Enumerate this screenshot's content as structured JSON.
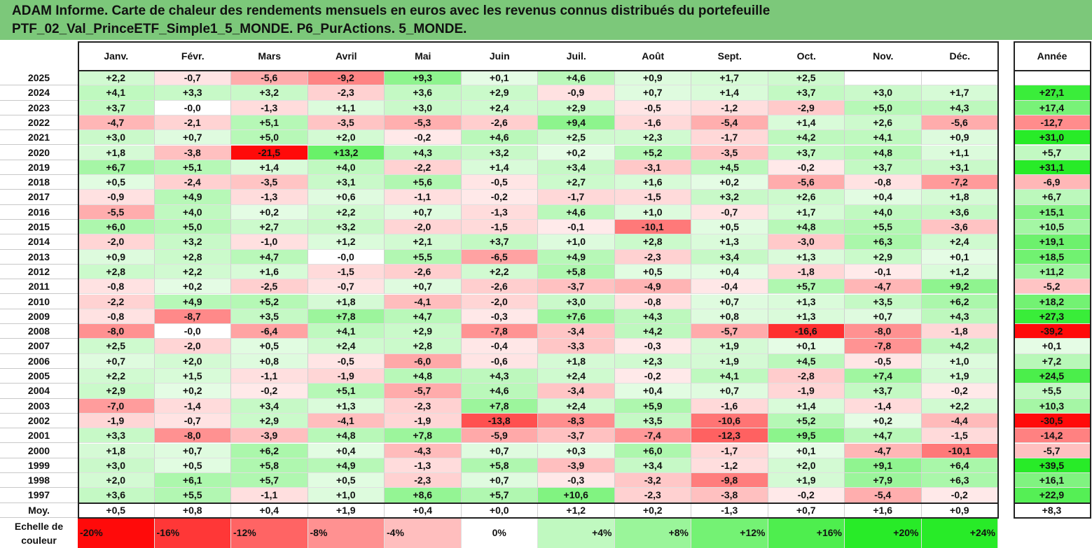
{
  "title": {
    "line1": "ADAM Informe. Carte de chaleur des rendements mensuels en euros avec les revenus connus distribués du portefeuille",
    "line2": "PTF_02_Val_PrinceETF_Simple1_5_MONDE. P6_PurActions. 5_MONDE."
  },
  "colors": {
    "title_bg": "#7cc87a",
    "positive_max": "#2ee82e",
    "negative_max": "#ff0000",
    "neutral": "#ffffff"
  },
  "chart_data": {
    "type": "heatmap",
    "columns": [
      "Janv.",
      "Févr.",
      "Mars",
      "Avril",
      "Mai",
      "Juin",
      "Juil.",
      "Août",
      "Sept.",
      "Oct.",
      "Nov.",
      "Déc."
    ],
    "year_column": "Année",
    "rows": [
      {
        "label": "2025",
        "months": [
          "+2,2",
          "-0,7",
          "-5,6",
          "-9,2",
          "+9,3",
          "+0,1",
          "+4,6",
          "+0,9",
          "+1,7",
          "+2,5",
          "",
          ""
        ],
        "year": ""
      },
      {
        "label": "2024",
        "months": [
          "+4,1",
          "+3,3",
          "+3,2",
          "-2,3",
          "+3,6",
          "+2,9",
          "-0,9",
          "+0,7",
          "+1,4",
          "+3,7",
          "+3,0",
          "+1,7"
        ],
        "year": "+27,1"
      },
      {
        "label": "2023",
        "months": [
          "+3,7",
          "-0,0",
          "-1,3",
          "+1,1",
          "+3,0",
          "+2,4",
          "+2,9",
          "-0,5",
          "-1,2",
          "-2,9",
          "+5,0",
          "+4,3"
        ],
        "year": "+17,4"
      },
      {
        "label": "2022",
        "months": [
          "-4,7",
          "-2,1",
          "+5,1",
          "-3,5",
          "-5,3",
          "-2,6",
          "+9,4",
          "-1,6",
          "-5,4",
          "+1,4",
          "+2,6",
          "-5,6"
        ],
        "year": "-12,7"
      },
      {
        "label": "2021",
        "months": [
          "+3,0",
          "+0,7",
          "+5,0",
          "+2,0",
          "-0,2",
          "+4,6",
          "+2,5",
          "+2,3",
          "-1,7",
          "+4,2",
          "+4,1",
          "+0,9"
        ],
        "year": "+31,0"
      },
      {
        "label": "2020",
        "months": [
          "+1,8",
          "-3,8",
          "-21,5",
          "+13,2",
          "+4,3",
          "+3,2",
          "+0,2",
          "+5,2",
          "-3,5",
          "+3,7",
          "+4,8",
          "+1,1"
        ],
        "year": "+5,7"
      },
      {
        "label": "2019",
        "months": [
          "+6,7",
          "+5,1",
          "+1,4",
          "+4,0",
          "-2,2",
          "+1,4",
          "+3,4",
          "-3,1",
          "+4,5",
          "-0,2",
          "+3,7",
          "+3,1"
        ],
        "year": "+31,1"
      },
      {
        "label": "2018",
        "months": [
          "+0,5",
          "-2,4",
          "-3,5",
          "+3,1",
          "+5,6",
          "-0,5",
          "+2,7",
          "+1,6",
          "+0,2",
          "-5,6",
          "-0,8",
          "-7,2"
        ],
        "year": "-6,9"
      },
      {
        "label": "2017",
        "months": [
          "-0,9",
          "+4,9",
          "-1,3",
          "+0,6",
          "-1,1",
          "-0,2",
          "-1,7",
          "-1,5",
          "+3,2",
          "+2,6",
          "+0,4",
          "+1,8"
        ],
        "year": "+6,7"
      },
      {
        "label": "2016",
        "months": [
          "-5,5",
          "+4,0",
          "+0,2",
          "+2,2",
          "+0,7",
          "-1,3",
          "+4,6",
          "+1,0",
          "-0,7",
          "+1,7",
          "+4,0",
          "+3,6"
        ],
        "year": "+15,1"
      },
      {
        "label": "2015",
        "months": [
          "+6,0",
          "+5,0",
          "+2,7",
          "+3,2",
          "-2,0",
          "-1,5",
          "-0,1",
          "-10,1",
          "+0,5",
          "+4,8",
          "+5,5",
          "-3,6"
        ],
        "year": "+10,5"
      },
      {
        "label": "2014",
        "months": [
          "-2,0",
          "+3,2",
          "-1,0",
          "+1,2",
          "+2,1",
          "+3,7",
          "+1,0",
          "+2,8",
          "+1,3",
          "-3,0",
          "+6,3",
          "+2,4"
        ],
        "year": "+19,1"
      },
      {
        "label": "2013",
        "months": [
          "+0,9",
          "+2,8",
          "+4,7",
          "-0,0",
          "+5,5",
          "-6,5",
          "+4,9",
          "-2,3",
          "+3,4",
          "+1,3",
          "+2,9",
          "+0,1"
        ],
        "year": "+18,5"
      },
      {
        "label": "2012",
        "months": [
          "+2,8",
          "+2,2",
          "+1,6",
          "-1,5",
          "-2,6",
          "+2,2",
          "+5,8",
          "+0,5",
          "+0,4",
          "-1,8",
          "-0,1",
          "+1,2"
        ],
        "year": "+11,2"
      },
      {
        "label": "2011",
        "months": [
          "-0,8",
          "+0,2",
          "-2,5",
          "-0,7",
          "+0,7",
          "-2,6",
          "-3,7",
          "-4,9",
          "-0,4",
          "+5,7",
          "-4,7",
          "+9,2"
        ],
        "year": "-5,2"
      },
      {
        "label": "2010",
        "months": [
          "-2,2",
          "+4,9",
          "+5,2",
          "+1,8",
          "-4,1",
          "-2,0",
          "+3,0",
          "-0,8",
          "+0,7",
          "+1,3",
          "+3,5",
          "+6,2"
        ],
        "year": "+18,2"
      },
      {
        "label": "2009",
        "months": [
          "-0,8",
          "-8,7",
          "+3,5",
          "+7,8",
          "+4,7",
          "-0,3",
          "+7,6",
          "+4,3",
          "+0,8",
          "+1,3",
          "+0,7",
          "+4,3"
        ],
        "year": "+27,3"
      },
      {
        "label": "2008",
        "months": [
          "-8,0",
          "-0,0",
          "-6,4",
          "+4,1",
          "+2,9",
          "-7,8",
          "-3,4",
          "+4,2",
          "-5,7",
          "-16,6",
          "-8,0",
          "-1,8"
        ],
        "year": "-39,2"
      },
      {
        "label": "2007",
        "months": [
          "+2,5",
          "-2,0",
          "+0,5",
          "+2,4",
          "+2,8",
          "-0,4",
          "-3,3",
          "-0,3",
          "+1,9",
          "+0,1",
          "-7,8",
          "+4,2"
        ],
        "year": "+0,1"
      },
      {
        "label": "2006",
        "months": [
          "+0,7",
          "+2,0",
          "+0,8",
          "-0,5",
          "-6,0",
          "-0,6",
          "+1,8",
          "+2,3",
          "+1,9",
          "+4,5",
          "-0,5",
          "+1,0"
        ],
        "year": "+7,2"
      },
      {
        "label": "2005",
        "months": [
          "+2,2",
          "+1,5",
          "-1,1",
          "-1,9",
          "+4,8",
          "+4,3",
          "+2,4",
          "-0,2",
          "+4,1",
          "-2,8",
          "+7,4",
          "+1,9"
        ],
        "year": "+24,5"
      },
      {
        "label": "2004",
        "months": [
          "+2,9",
          "+0,2",
          "-0,2",
          "+5,1",
          "-5,7",
          "+4,6",
          "-3,4",
          "+0,4",
          "+0,7",
          "-1,9",
          "+3,7",
          "-0,2"
        ],
        "year": "+5,5"
      },
      {
        "label": "2003",
        "months": [
          "-7,0",
          "-1,4",
          "+3,4",
          "+1,3",
          "-2,3",
          "+7,8",
          "+2,4",
          "+5,9",
          "-1,6",
          "+1,4",
          "-1,4",
          "+2,2"
        ],
        "year": "+10,3"
      },
      {
        "label": "2002",
        "months": [
          "-1,9",
          "-0,7",
          "+2,9",
          "-4,1",
          "-1,9",
          "-13,8",
          "-8,3",
          "+3,5",
          "-10,6",
          "+5,2",
          "+0,2",
          "-4,4"
        ],
        "year": "-30,5"
      },
      {
        "label": "2001",
        "months": [
          "+3,3",
          "-8,0",
          "-3,9",
          "+4,8",
          "+7,8",
          "-5,9",
          "-3,7",
          "-7,4",
          "-12,3",
          "+9,5",
          "+4,7",
          "-1,5"
        ],
        "year": "-14,2"
      },
      {
        "label": "2000",
        "months": [
          "+1,8",
          "+0,7",
          "+6,2",
          "+0,4",
          "-4,3",
          "+0,7",
          "+0,3",
          "+6,0",
          "-1,7",
          "+0,1",
          "-4,7",
          "-10,1"
        ],
        "year": "-5,7"
      },
      {
        "label": "1999",
        "months": [
          "+3,0",
          "+0,5",
          "+5,8",
          "+4,9",
          "-1,3",
          "+5,8",
          "-3,9",
          "+3,4",
          "-1,2",
          "+2,0",
          "+9,1",
          "+6,4"
        ],
        "year": "+39,5"
      },
      {
        "label": "1998",
        "months": [
          "+2,0",
          "+6,1",
          "+5,7",
          "+0,5",
          "-2,3",
          "+0,7",
          "-0,3",
          "-3,2",
          "-9,8",
          "+1,9",
          "+7,9",
          "+6,3"
        ],
        "year": "+16,1"
      },
      {
        "label": "1997",
        "months": [
          "+3,6",
          "+5,5",
          "-1,1",
          "+1,0",
          "+8,6",
          "+5,7",
          "+10,6",
          "-2,3",
          "-3,8",
          "-0,2",
          "-5,4",
          "-0,2"
        ],
        "year": "+22,9"
      }
    ],
    "average_row": {
      "label": "Moy.",
      "months": [
        "+0,5",
        "+0,8",
        "+0,4",
        "+1,9",
        "+0,4",
        "+0,0",
        "+1,2",
        "+0,2",
        "-1,3",
        "+0,7",
        "+1,6",
        "+0,9"
      ],
      "year": "+8,3"
    },
    "scale": {
      "label_line1": "Echelle de",
      "label_line2": "couleur",
      "values": [
        -20,
        -16,
        -12,
        -8,
        -4,
        0,
        4,
        8,
        12,
        16,
        20,
        24
      ],
      "labels": [
        "-20%",
        "-16%",
        "-12%",
        "-8%",
        "-4%",
        "0%",
        "+4%",
        "+8%",
        "+12%",
        "+16%",
        "+20%",
        "+24%"
      ]
    }
  }
}
